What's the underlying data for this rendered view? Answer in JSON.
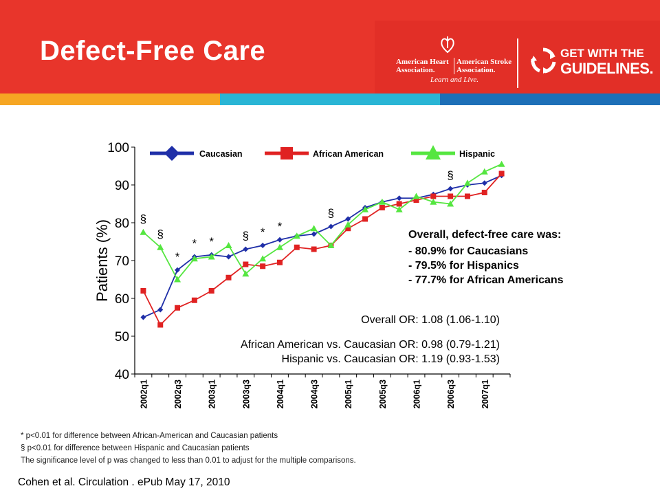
{
  "slide": {
    "title": "Defect-Free Care",
    "colors": {
      "banner": "#e8352b",
      "stripe_orange": "#f6a623",
      "stripe_cyan": "#29b5d5",
      "stripe_blue": "#1d6fb7"
    }
  },
  "logos": {
    "aha_line1": "American Heart",
    "aha_line2": "Association.",
    "asa_line1": "American Stroke",
    "asa_line2": "Association.",
    "tagline": "Learn and Live.",
    "gwtg_line1": "GET WITH THE",
    "gwtg_line2": "GUIDELINES.",
    "icons": [
      "torch-heart-icon",
      "recycle-arrows-icon"
    ]
  },
  "chart_data": {
    "type": "line",
    "ylabel": "Patients (%)",
    "xlabel": "",
    "ylim": [
      40,
      100
    ],
    "yticks": [
      40,
      50,
      60,
      70,
      80,
      90,
      100
    ],
    "grid": false,
    "legend_position": "top",
    "x": [
      "2002q1",
      "2002q2",
      "2002q3",
      "2002q4",
      "2003q1",
      "2003q2",
      "2003q3",
      "2003q4",
      "2004q1",
      "2004q2",
      "2004q3",
      "2004q4",
      "2005q1",
      "2005q2",
      "2005q3",
      "2005q4",
      "2006q1",
      "2006q2",
      "2006q3",
      "2006q4",
      "2007q1",
      "2007q2"
    ],
    "xtick_labels": [
      "2002q1",
      "2002q3",
      "2003q1",
      "2003q3",
      "2004q1",
      "2004q3",
      "2005q1",
      "2005q3",
      "2006q1",
      "2006q3",
      "2007q1"
    ],
    "series": [
      {
        "name": "Caucasian",
        "color": "#1f2fa8",
        "marker": "diamond",
        "values": [
          55,
          57,
          67.5,
          71,
          71.5,
          71,
          73,
          74,
          75.5,
          76.5,
          77,
          79,
          81,
          84,
          85.5,
          86.5,
          86.5,
          87.5,
          89,
          90,
          90.5,
          92.5
        ]
      },
      {
        "name": "African American",
        "color": "#e02222",
        "marker": "square",
        "values": [
          62,
          53,
          57.5,
          59.5,
          62,
          65.5,
          69,
          68.5,
          69.5,
          73.5,
          73,
          74,
          78.5,
          81,
          84,
          85,
          86,
          87,
          87,
          87,
          88,
          93
        ]
      },
      {
        "name": "Hispanic",
        "color": "#55e640",
        "marker": "triangle",
        "values": [
          77.5,
          73.5,
          65,
          70.5,
          71,
          74,
          66.5,
          70.5,
          73.5,
          76.5,
          78.5,
          74,
          79.5,
          83.5,
          85.5,
          83.5,
          87,
          85.5,
          85,
          90.5,
          93.5,
          95.5
        ]
      }
    ],
    "markers": [
      {
        "symbol": "§",
        "x": "2002q1"
      },
      {
        "symbol": "§",
        "x": "2002q2"
      },
      {
        "symbol": "*",
        "x": "2002q3"
      },
      {
        "symbol": "*",
        "x": "2002q4"
      },
      {
        "symbol": "*",
        "x": "2003q1"
      },
      {
        "symbol": "§",
        "x": "2003q3"
      },
      {
        "symbol": "*",
        "x": "2003q4"
      },
      {
        "symbol": "*",
        "x": "2004q1"
      },
      {
        "symbol": "§",
        "x": "2004q4"
      },
      {
        "symbol": "§",
        "x": "2006q3"
      }
    ],
    "summary": {
      "heading": "Overall, defect-free care was:",
      "lines": [
        "- 80.9% for Caucasians",
        "- 79.5% for Hispanics",
        "- 77.7% for African Americans"
      ]
    },
    "or_text": [
      "Overall OR: 1.08 (1.06-1.10)",
      "African American vs. Caucasian OR: 0.98 (0.79-1.21)",
      "Hispanic vs. Caucasian OR: 1.19 (0.93-1.53)"
    ]
  },
  "footnotes": [
    "* p<0.01 for difference between African-American and Caucasian patients",
    "§ p<0.01 for difference between Hispanic and Caucasian patients",
    "The significance level of p was changed to less than 0.01 to adjust for the multiple comparisons."
  ],
  "citation": "Cohen et al. Circulation . ePub May 17, 2010"
}
